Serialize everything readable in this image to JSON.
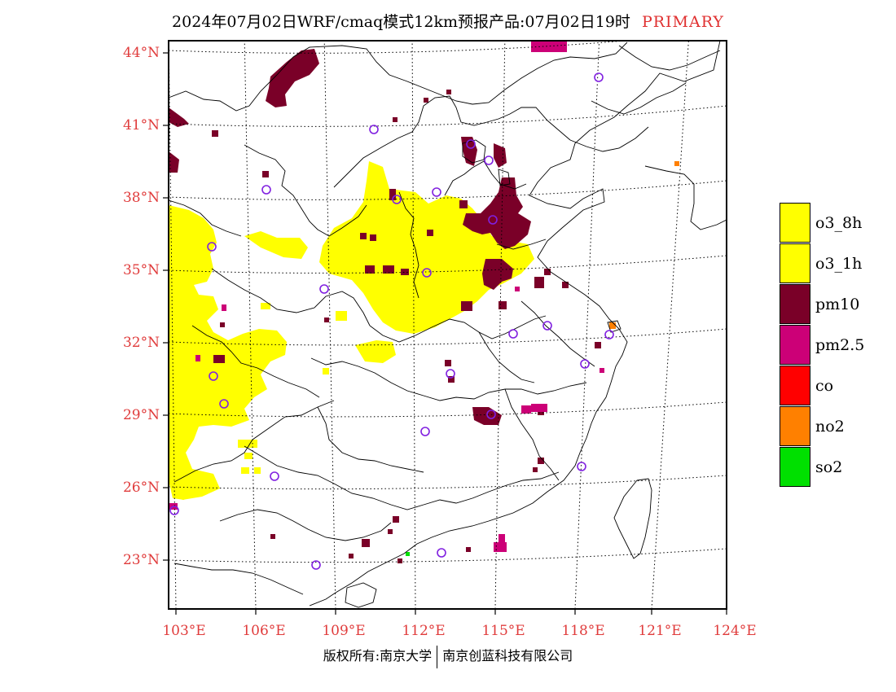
{
  "title": {
    "main": "2024年07月02日WRF/cmaq模式12km预报产品:07月02日19时",
    "badge": "PRIMARY"
  },
  "axes": {
    "lat_labels": [
      "44°N",
      "41°N",
      "38°N",
      "35°N",
      "32°N",
      "29°N",
      "26°N",
      "23°N"
    ],
    "lon_labels": [
      "103°E",
      "106°E",
      "109°E",
      "112°E",
      "115°E",
      "118°E",
      "121°E",
      "124°E"
    ]
  },
  "legend": [
    {
      "label": "o3_8h",
      "color": "#ffff00"
    },
    {
      "label": "o3_1h",
      "color": "#ffff00"
    },
    {
      "label": "pm10",
      "color": "#7a0028"
    },
    {
      "label": "pm2.5",
      "color": "#cc0077"
    },
    {
      "label": "co",
      "color": "#ff0000"
    },
    {
      "label": "no2",
      "color": "#ff8000"
    },
    {
      "label": "so2",
      "color": "#00e000"
    }
  ],
  "footer": {
    "left": "版权所有:南京大学",
    "right": "南京创蓝科技有限公司"
  },
  "colors": {
    "axis_label": "#e03c3c",
    "title_badge": "#e03030",
    "station_marker": "#8020e0"
  }
}
